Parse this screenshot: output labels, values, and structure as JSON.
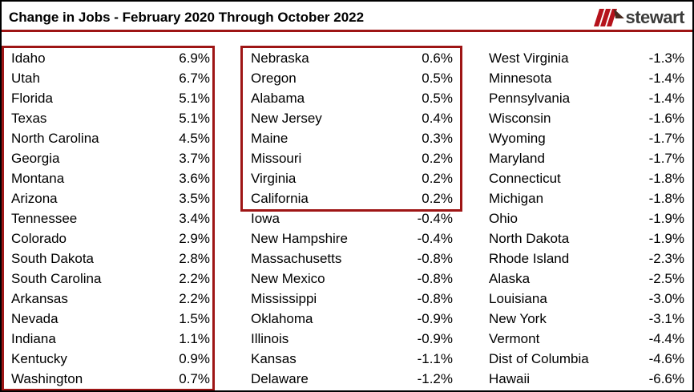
{
  "title": "Change in Jobs - February 2020 Through October 2022",
  "logo": {
    "brand": "stewart"
  },
  "colors": {
    "accent_red": "#9E1515",
    "logo_red": "#B5121B",
    "logo_dark": "#4A2B20",
    "logo_text": "#3C3C3B",
    "text": "#000000",
    "frame": "#000000"
  },
  "chart_data": {
    "type": "table",
    "title": "Change in Jobs - February 2020 Through October 2022",
    "value_unit": "percent",
    "columns": [
      {
        "highlight_box": "rows 1-17",
        "rows": [
          {
            "label": "Idaho",
            "value": "6.9%"
          },
          {
            "label": "Utah",
            "value": "6.7%"
          },
          {
            "label": "Florida",
            "value": "5.1%"
          },
          {
            "label": "Texas",
            "value": "5.1%"
          },
          {
            "label": "North Carolina",
            "value": "4.5%"
          },
          {
            "label": "Georgia",
            "value": "3.7%"
          },
          {
            "label": "Montana",
            "value": "3.6%"
          },
          {
            "label": "Arizona",
            "value": "3.5%"
          },
          {
            "label": "Tennessee",
            "value": "3.4%"
          },
          {
            "label": "Colorado",
            "value": "2.9%"
          },
          {
            "label": "South Dakota",
            "value": "2.8%"
          },
          {
            "label": "South Carolina",
            "value": "2.2%"
          },
          {
            "label": "Arkansas",
            "value": "2.2%"
          },
          {
            "label": "Nevada",
            "value": "1.5%"
          },
          {
            "label": "Indiana",
            "value": "1.1%"
          },
          {
            "label": "Kentucky",
            "value": "0.9%"
          },
          {
            "label": "Washington",
            "value": "0.7%"
          }
        ]
      },
      {
        "highlight_box": "rows 1-8",
        "rows": [
          {
            "label": "Nebraska",
            "value": "0.6%"
          },
          {
            "label": "Oregon",
            "value": "0.5%"
          },
          {
            "label": "Alabama",
            "value": "0.5%"
          },
          {
            "label": "New Jersey",
            "value": "0.4%"
          },
          {
            "label": "Maine",
            "value": "0.3%"
          },
          {
            "label": "Missouri",
            "value": "0.2%"
          },
          {
            "label": "Virginia",
            "value": "0.2%"
          },
          {
            "label": "California",
            "value": "0.2%"
          },
          {
            "label": "Iowa",
            "value": "-0.4%"
          },
          {
            "label": "New Hampshire",
            "value": "-0.4%"
          },
          {
            "label": "Massachusetts",
            "value": "-0.8%"
          },
          {
            "label": "New Mexico",
            "value": "-0.8%"
          },
          {
            "label": "Mississippi",
            "value": "-0.8%"
          },
          {
            "label": "Oklahoma",
            "value": "-0.9%"
          },
          {
            "label": "Illinois",
            "value": "-0.9%"
          },
          {
            "label": "Kansas",
            "value": "-1.1%"
          },
          {
            "label": "Delaware",
            "value": "-1.2%"
          }
        ]
      },
      {
        "highlight_box": "none",
        "rows": [
          {
            "label": "West Virginia",
            "value": "-1.3%"
          },
          {
            "label": "Minnesota",
            "value": "-1.4%"
          },
          {
            "label": "Pennsylvania",
            "value": "-1.4%"
          },
          {
            "label": "Wisconsin",
            "value": "-1.6%"
          },
          {
            "label": "Wyoming",
            "value": "-1.7%"
          },
          {
            "label": "Maryland",
            "value": "-1.7%"
          },
          {
            "label": "Connecticut",
            "value": "-1.8%"
          },
          {
            "label": "Michigan",
            "value": "-1.8%"
          },
          {
            "label": "Ohio",
            "value": "-1.9%"
          },
          {
            "label": "North Dakota",
            "value": "-1.9%"
          },
          {
            "label": "Rhode Island",
            "value": "-2.3%"
          },
          {
            "label": "Alaska",
            "value": "-2.5%"
          },
          {
            "label": "Louisiana",
            "value": "-3.0%"
          },
          {
            "label": "New York",
            "value": "-3.1%"
          },
          {
            "label": "Vermont",
            "value": "-4.4%"
          },
          {
            "label": "Dist of Columbia",
            "value": "-4.6%"
          },
          {
            "label": "Hawaii",
            "value": "-6.6%"
          }
        ]
      }
    ]
  }
}
